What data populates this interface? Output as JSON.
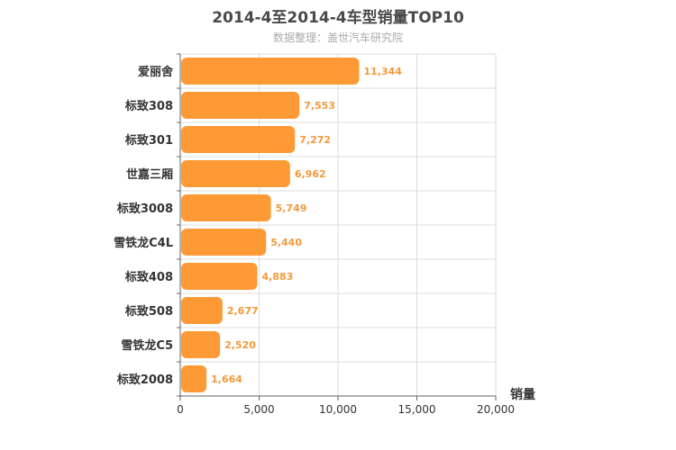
{
  "colors": {
    "bar": "#fe9a35",
    "value_label": "#f29a3a",
    "grid": "#dddddd",
    "axis": "#666666"
  },
  "chart_data": {
    "type": "bar",
    "orientation": "horizontal",
    "title": "2014-4至2014-4车型销量TOP10",
    "subtitle": "数据整理：盖世汽车研究院",
    "xlabel": "销量",
    "ylabel": "",
    "xlim": [
      0,
      20000
    ],
    "xticks": [
      0,
      5000,
      10000,
      15000,
      20000
    ],
    "xtick_labels": [
      "0",
      "5,000",
      "10,000",
      "15,000",
      "20,000"
    ],
    "categories": [
      "爱丽舍",
      "标致308",
      "标致301",
      "世嘉三厢",
      "标致3008",
      "雪铁龙C4L",
      "标致408",
      "标致508",
      "雪铁龙C5",
      "标致2008"
    ],
    "values": [
      11344,
      7553,
      7272,
      6962,
      5749,
      5440,
      4883,
      2677,
      2520,
      1664
    ],
    "value_labels": [
      "11,344",
      "7,553",
      "7,272",
      "6,962",
      "5,749",
      "5,440",
      "4,883",
      "2,677",
      "2,520",
      "1,664"
    ],
    "grid": true
  }
}
